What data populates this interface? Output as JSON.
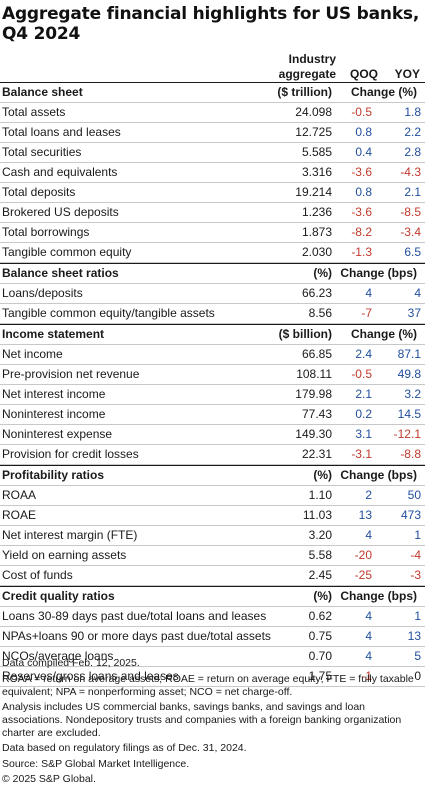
{
  "title": "Aggregate financial highlights for US banks, Q4 2024",
  "columns": {
    "industry_line1": "Industry",
    "industry_line2": "aggregate",
    "qoq": "QOQ",
    "yoy": "YOY"
  },
  "sections": [
    {
      "header": "Balance sheet",
      "unit": "($ trillion)",
      "change": "Change (%)",
      "rows": [
        {
          "label": "Total assets",
          "value": "24.098",
          "qoq": "-0.5",
          "yoy": "1.8"
        },
        {
          "label": "Total loans and leases",
          "value": "12.725",
          "qoq": "0.8",
          "yoy": "2.2"
        },
        {
          "label": "Total securities",
          "value": "5.585",
          "qoq": "0.4",
          "yoy": "2.8"
        },
        {
          "label": "Cash and equivalents",
          "value": "3.316",
          "qoq": "-3.6",
          "yoy": "-4.3"
        },
        {
          "label": "Total deposits",
          "value": "19.214",
          "qoq": "0.8",
          "yoy": "2.1"
        },
        {
          "label": "Brokered US deposits",
          "value": "1.236",
          "qoq": "-3.6",
          "yoy": "-8.5"
        },
        {
          "label": "Total borrowings",
          "value": "1.873",
          "qoq": "-8.2",
          "yoy": "-3.4"
        },
        {
          "label": "Tangible common equity",
          "value": "2.030",
          "qoq": "-1.3",
          "yoy": "6.5"
        }
      ]
    },
    {
      "header": "Balance sheet ratios",
      "unit": "(%)",
      "change": "Change (bps)",
      "rows": [
        {
          "label": "Loans/deposits",
          "value": "66.23",
          "qoq": "4",
          "yoy": "4"
        },
        {
          "label": "Tangible common equity/tangible assets",
          "value": "8.56",
          "qoq": "-7",
          "yoy": "37"
        }
      ]
    },
    {
      "header": "Income statement",
      "unit": "($ billion)",
      "change": "Change (%)",
      "rows": [
        {
          "label": "Net income",
          "value": "66.85",
          "qoq": "2.4",
          "yoy": "87.1"
        },
        {
          "label": "Pre-provision net revenue",
          "value": "108.11",
          "qoq": "-0.5",
          "yoy": "49.8"
        },
        {
          "label": "Net interest income",
          "value": "179.98",
          "qoq": "2.1",
          "yoy": "3.2"
        },
        {
          "label": "Noninterest income",
          "value": "77.43",
          "qoq": "0.2",
          "yoy": "14.5"
        },
        {
          "label": "Noninterest expense",
          "value": "149.30",
          "qoq": "3.1",
          "yoy": "-12.1"
        },
        {
          "label": "Provision for credit losses",
          "value": "22.31",
          "qoq": "-3.1",
          "yoy": "-8.8"
        }
      ]
    },
    {
      "header": "Profitability ratios",
      "unit": "(%)",
      "change": "Change (bps)",
      "rows": [
        {
          "label": "ROAA",
          "value": "1.10",
          "qoq": "2",
          "yoy": "50"
        },
        {
          "label": "ROAE",
          "value": "11.03",
          "qoq": "13",
          "yoy": "473"
        },
        {
          "label": "Net interest margin (FTE)",
          "value": "3.20",
          "qoq": "4",
          "yoy": "1"
        },
        {
          "label": "Yield on earning assets",
          "value": "5.58",
          "qoq": "-20",
          "yoy": "-4"
        },
        {
          "label": "Cost of funds",
          "value": "2.45",
          "qoq": "-25",
          "yoy": "-3"
        }
      ]
    },
    {
      "header": "Credit quality ratios",
      "unit": "(%)",
      "change": "Change (bps)",
      "rows": [
        {
          "label": "Loans 30-89 days past due/total loans and leases",
          "value": "0.62",
          "qoq": "4",
          "yoy": "1"
        },
        {
          "label": "NPAs+loans 90 or more days past due/total assets",
          "value": "0.75",
          "qoq": "4",
          "yoy": "13"
        },
        {
          "label": "NCOs/average loans",
          "value": "0.70",
          "qoq": "4",
          "yoy": "5"
        },
        {
          "label": "Reserves/gross loans and leases",
          "value": "1.75",
          "qoq": "-1",
          "yoy": "0"
        }
      ]
    }
  ],
  "footnotes": [
    "Data compiled Feb. 12, 2025.",
    "ROAA = return on average assets; ROAE = return on average equity; FTE = fully taxable equivalent; NPA = nonperforming asset; NCO = net charge-off.",
    "Analysis includes US commercial banks, savings banks, and savings and loan associations. Nondepository trusts and companies with a foreign banking organization charter are excluded.",
    "Data based on regulatory filings as of Dec. 31, 2024.",
    "Source: S&P Global Market Intelligence.",
    "© 2025 S&P Global."
  ],
  "colors": {
    "negative": "#c0392b",
    "positive": "#1f4e9c",
    "rule": "#c8c8c8"
  }
}
